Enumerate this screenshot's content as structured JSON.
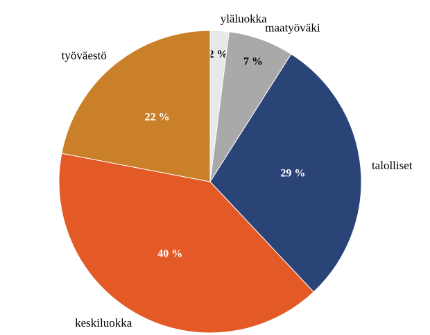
{
  "chart_data": {
    "type": "pie",
    "categories": [
      "yläluokka",
      "maatyöväki",
      "talolliset",
      "keskiluokka",
      "työväestö"
    ],
    "values": [
      2,
      7,
      29,
      40,
      22
    ],
    "value_labels": [
      "2 %",
      "7 %",
      "29 %",
      "40 %",
      "22 %"
    ],
    "colors": [
      "#e8e8e8",
      "#a9a9a9",
      "#2b4478",
      "#e35a26",
      "#c98029"
    ]
  }
}
